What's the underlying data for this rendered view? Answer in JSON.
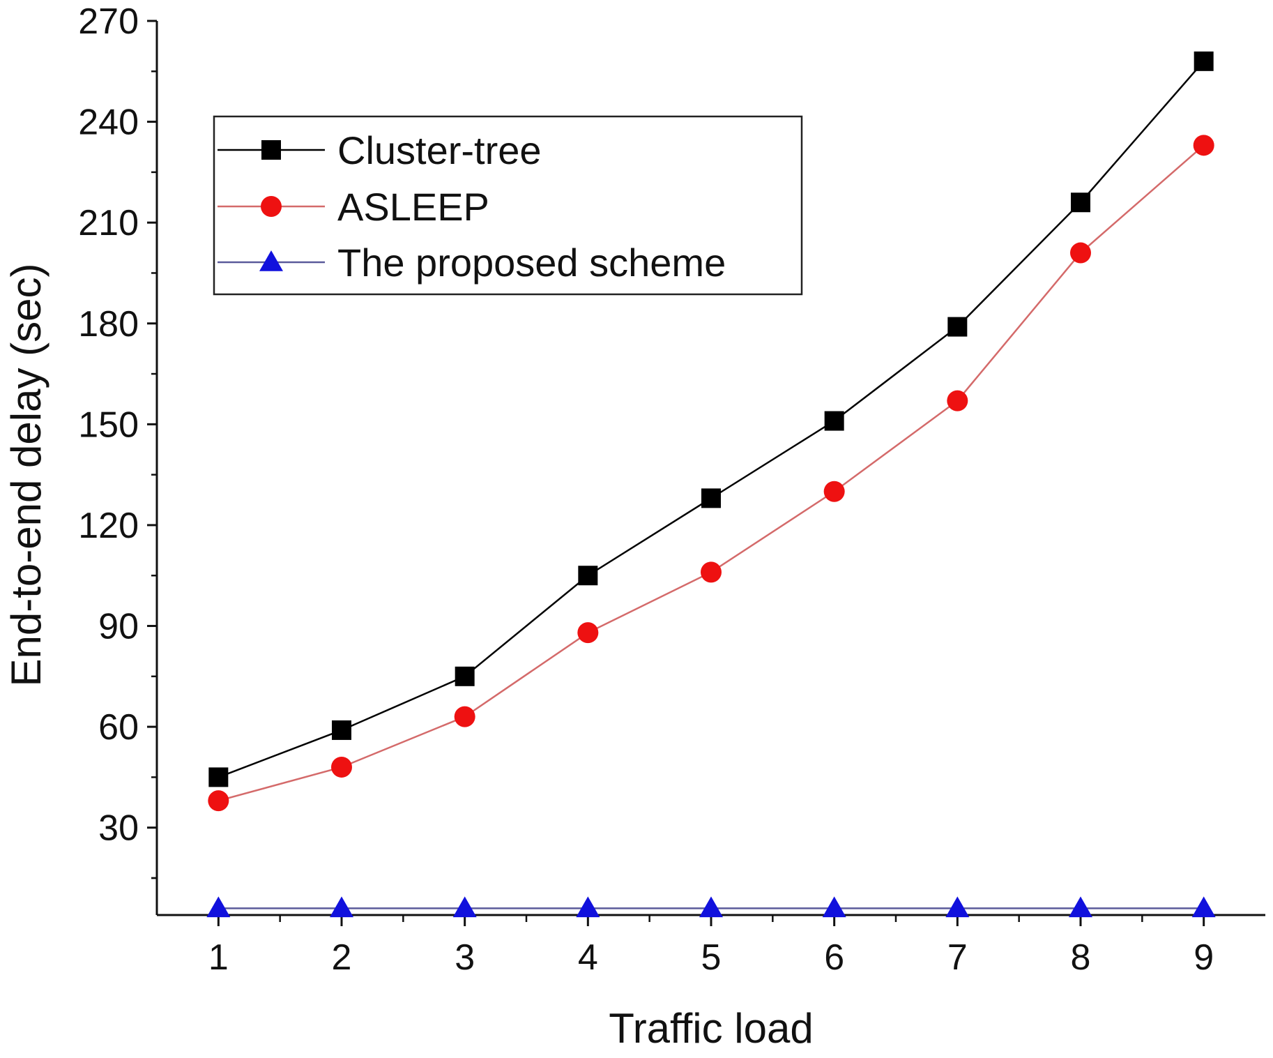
{
  "chart_data": {
    "type": "line",
    "title": "",
    "xlabel": "Traffic load",
    "ylabel": "End-to-end delay (sec)",
    "x": [
      1,
      2,
      3,
      4,
      5,
      6,
      7,
      8,
      9
    ],
    "xlim": [
      0.5,
      9.5
    ],
    "ylim": [
      4,
      270
    ],
    "yticks": [
      30,
      60,
      90,
      120,
      150,
      180,
      210,
      240,
      270
    ],
    "ytick_labels": [
      "30",
      "60",
      "90",
      "120",
      "150",
      "180",
      "210",
      "240",
      "270"
    ],
    "xtick_labels": [
      "1",
      "2",
      "3",
      "4",
      "5",
      "6",
      "7",
      "8",
      "9"
    ],
    "grid": false,
    "legend_position": "top-left",
    "series": [
      {
        "name": "Cluster-tree",
        "marker": "square",
        "line_color": "#000000",
        "marker_color": "#000000",
        "values": [
          45,
          59,
          75,
          105,
          128,
          151,
          179,
          216,
          258
        ]
      },
      {
        "name": "ASLEEP",
        "marker": "circle",
        "line_color": "#d46a6a",
        "marker_color": "#ee1111",
        "values": [
          38,
          48,
          63,
          88,
          106,
          130,
          157,
          201,
          233
        ]
      },
      {
        "name": "The proposed scheme",
        "marker": "triangle",
        "line_color": "#5a5a9a",
        "marker_color": "#1111dd",
        "values": [
          6,
          6,
          6,
          6,
          6,
          6,
          6,
          6,
          6
        ]
      }
    ]
  }
}
